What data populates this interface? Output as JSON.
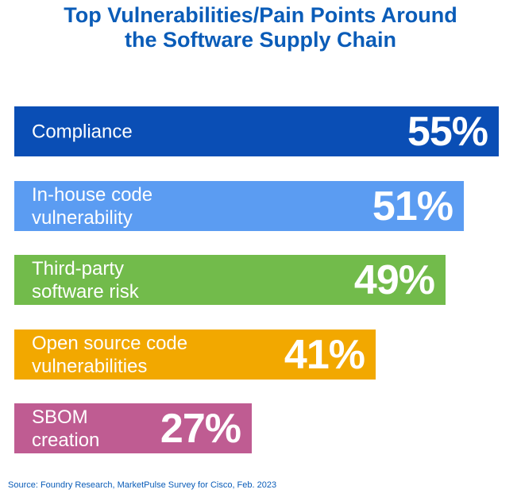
{
  "chart_data": {
    "type": "bar",
    "orientation": "horizontal",
    "title_lines": [
      "Top Vulnerabilities/Pain Points Around",
      "the Software Supply Chain"
    ],
    "categories": [
      "Compliance",
      "In-house code\nvulnerability",
      "Third-party\nsoftware risk",
      "Open source code\nvulnerabilities",
      "SBOM\ncreation"
    ],
    "values": [
      55,
      51,
      49,
      41,
      27
    ],
    "value_labels": [
      "55%",
      "51%",
      "49%",
      "41%",
      "27%"
    ],
    "colors": [
      "#0a4eb5",
      "#5b9cf2",
      "#72bb4b",
      "#f2a800",
      "#bf5c92"
    ],
    "unit": "%",
    "source": "Source: Foundry Research, MarketPulse Survey for Cisco, Feb. 2023"
  }
}
